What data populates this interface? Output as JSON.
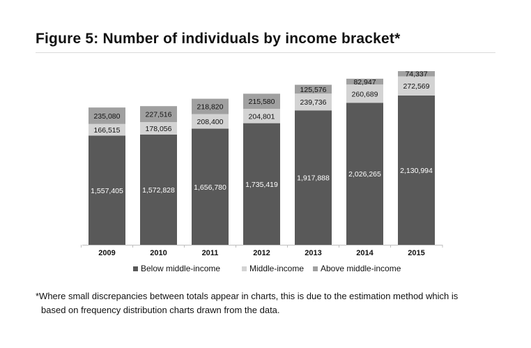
{
  "figure_title": "Figure 5: Number of individuals by income bracket*",
  "footnote_line1": "*Where small discrepancies between totals appear in charts, this is due to the estimation method which is",
  "footnote_line2": "based on frequency distribution charts drawn from the data.",
  "colors": {
    "below": "#595959",
    "middle": "#d3d3d3",
    "above": "#a0a0a0",
    "axis": "#bfbfbf"
  },
  "chart_data": {
    "type": "bar",
    "stacked": true,
    "categories": [
      "2009",
      "2010",
      "2011",
      "2012",
      "2013",
      "2014",
      "2015"
    ],
    "series": [
      {
        "name": "Below middle-income",
        "values": [
          1557405,
          1572828,
          1656780,
          1735419,
          1917888,
          2026265,
          2130994
        ],
        "labels": [
          "1,557,405",
          "1,572,828",
          "1,656,780",
          "1,735,419",
          "1,917,888",
          "2,026,265",
          "2,130,994"
        ]
      },
      {
        "name": "Middle-income",
        "values": [
          166515,
          178056,
          208400,
          204801,
          239736,
          260689,
          272569
        ],
        "labels": [
          "166,515",
          "178,056",
          "208,400",
          "204,801",
          "239,736",
          "260,689",
          "272,569"
        ]
      },
      {
        "name": "Above middle-income",
        "values": [
          235080,
          227516,
          218820,
          215580,
          125576,
          82947,
          74337
        ],
        "labels": [
          "235,080",
          "227,516",
          "218,820",
          "215,580",
          "125,576",
          "82,947",
          "74,337"
        ]
      }
    ],
    "legend_position": "bottom",
    "grid": false,
    "y_axis_visible": false
  }
}
